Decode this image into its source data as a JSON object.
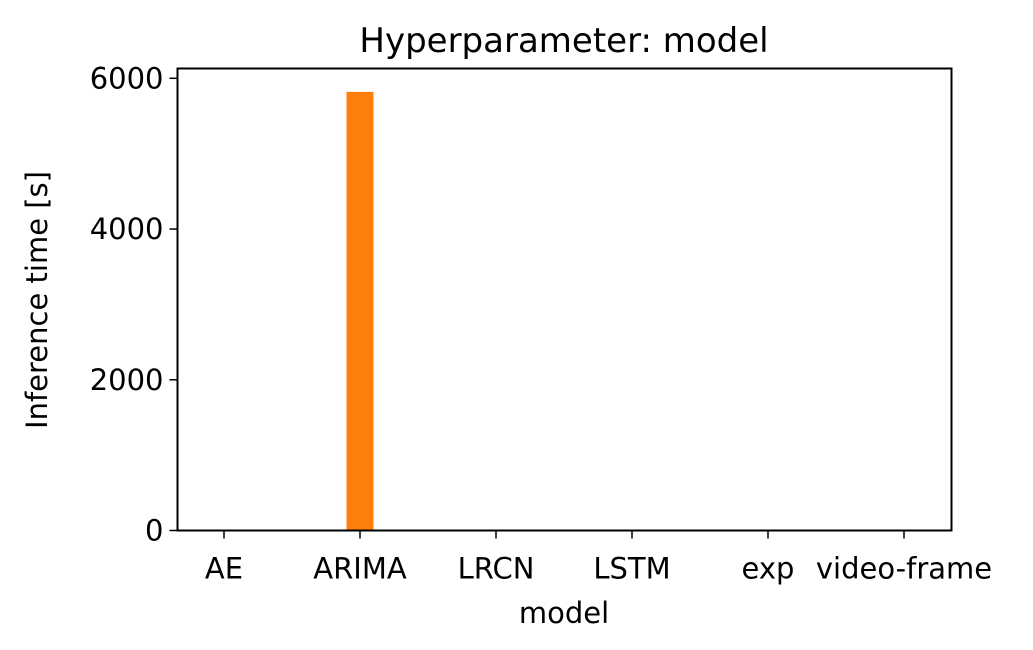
{
  "chart_data": {
    "type": "bar",
    "title": "Hyperparameter: model",
    "xlabel": "model",
    "ylabel": "Inference time [s]",
    "categories": [
      "AE",
      "ARIMA",
      "LRCN",
      "LSTM",
      "exp",
      "video-frame"
    ],
    "values": [
      0,
      5820,
      0,
      0,
      0,
      0
    ],
    "ylim": [
      0,
      6130
    ],
    "yticks": [
      0,
      2000,
      4000,
      6000
    ],
    "ytick_labels": [
      "0",
      "2000",
      "4000",
      "6000"
    ],
    "bar_color": "#ff7f0e",
    "grid": false,
    "legend": "none"
  }
}
